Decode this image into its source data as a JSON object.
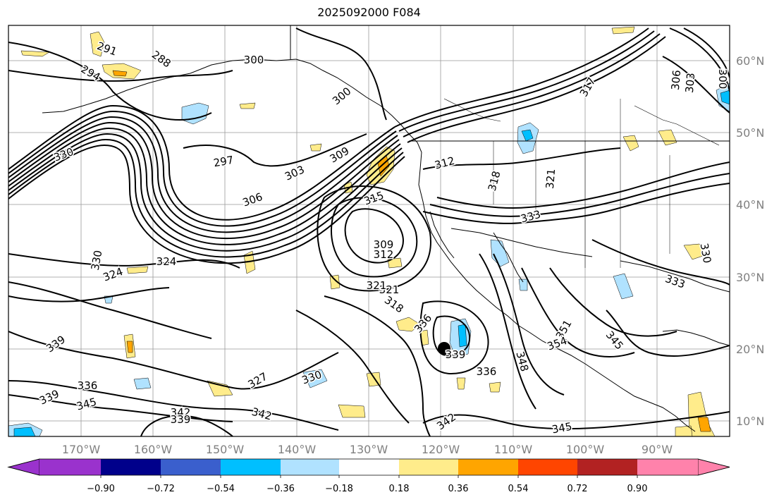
{
  "title": "2025092000 F084",
  "map": {
    "lon_ticks": [
      "170°W",
      "160°W",
      "150°W",
      "140°W",
      "130°W",
      "120°W",
      "110°W",
      "100°W",
      "90°W"
    ],
    "lat_ticks": [
      "60°N",
      "50°N",
      "40°N",
      "30°N",
      "20°N",
      "10°N"
    ]
  },
  "contour_labels": [
    {
      "text": "291"
    },
    {
      "text": "288"
    },
    {
      "text": "294"
    },
    {
      "text": "300"
    },
    {
      "text": "300"
    },
    {
      "text": "330"
    },
    {
      "text": "297"
    },
    {
      "text": "303"
    },
    {
      "text": "309"
    },
    {
      "text": "306"
    },
    {
      "text": "315"
    },
    {
      "text": "312"
    },
    {
      "text": "318"
    },
    {
      "text": "321"
    },
    {
      "text": "321"
    },
    {
      "text": "333"
    },
    {
      "text": "309"
    },
    {
      "text": "312"
    },
    {
      "text": "330"
    },
    {
      "text": "324"
    },
    {
      "text": "324"
    },
    {
      "text": "321"
    },
    {
      "text": "318"
    },
    {
      "text": "336"
    },
    {
      "text": "339"
    },
    {
      "text": "336"
    },
    {
      "text": "348"
    },
    {
      "text": "351"
    },
    {
      "text": "354"
    },
    {
      "text": "345"
    },
    {
      "text": "339"
    },
    {
      "text": "336"
    },
    {
      "text": "339"
    },
    {
      "text": "345"
    },
    {
      "text": "327"
    },
    {
      "text": "330"
    },
    {
      "text": "342"
    },
    {
      "text": "339"
    },
    {
      "text": "342"
    },
    {
      "text": "342"
    },
    {
      "text": "345"
    },
    {
      "text": "306"
    },
    {
      "text": "303"
    },
    {
      "text": "300"
    },
    {
      "text": "333"
    },
    {
      "text": "330"
    },
    {
      "text": "317"
    }
  ],
  "colorbar": {
    "tick_labels": [
      "−0.90",
      "−0.72",
      "−0.54",
      "−0.36",
      "−0.18",
      "0.18",
      "0.36",
      "0.54",
      "0.72",
      "0.90"
    ],
    "colors": [
      "#9a32cd",
      "#00008b",
      "#3a5fcd",
      "#00bfff",
      "#b0e2ff",
      "#ffffff",
      "#ffec8b",
      "#ffa500",
      "#ff4500",
      "#b22222",
      "#ff82ab"
    ]
  }
}
